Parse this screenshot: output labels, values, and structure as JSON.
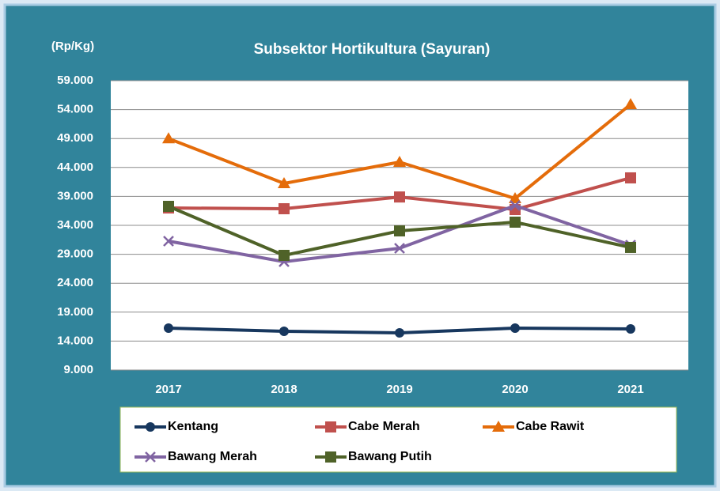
{
  "chart_data": {
    "type": "line",
    "title": "Subsektor Hortikultura (Sayuran)",
    "y_label": "(Rp/Kg)",
    "categories": [
      "2017",
      "2018",
      "2019",
      "2020",
      "2021"
    ],
    "ylim": [
      9000,
      59000
    ],
    "yticks": [
      {
        "value": 9000,
        "label": "9.000"
      },
      {
        "value": 14000,
        "label": "14.000"
      },
      {
        "value": 19000,
        "label": "19.000"
      },
      {
        "value": 24000,
        "label": "24.000"
      },
      {
        "value": 29000,
        "label": "29.000"
      },
      {
        "value": 34000,
        "label": "34.000"
      },
      {
        "value": 39000,
        "label": "39.000"
      },
      {
        "value": 44000,
        "label": "44.000"
      },
      {
        "value": 49000,
        "label": "49.000"
      },
      {
        "value": 54000,
        "label": "54.000"
      },
      {
        "value": 59000,
        "label": "59.000"
      }
    ],
    "grid": true,
    "legend": "bottom",
    "series": [
      {
        "name": "Kentang",
        "color": "#17375e",
        "marker": "circle",
        "values": [
          16240,
          15700,
          15420,
          16240,
          16100
        ]
      },
      {
        "name": "Cabe Merah",
        "color": "#c0504d",
        "marker": "square",
        "values": [
          37000,
          36870,
          38900,
          36730,
          42200
        ]
      },
      {
        "name": "Cabe Rawit",
        "color": "#e46c0a",
        "marker": "triangle",
        "values": [
          49000,
          41240,
          44930,
          38640,
          54900
        ]
      },
      {
        "name": "Bawang Merah",
        "color": "#8064a2",
        "marker": "x",
        "values": [
          31270,
          27720,
          30040,
          37420,
          30590
        ]
      },
      {
        "name": "Bawang Putih",
        "color": "#4f6228",
        "marker": "square",
        "values": [
          37280,
          28810,
          33040,
          34550,
          30180
        ]
      }
    ]
  }
}
